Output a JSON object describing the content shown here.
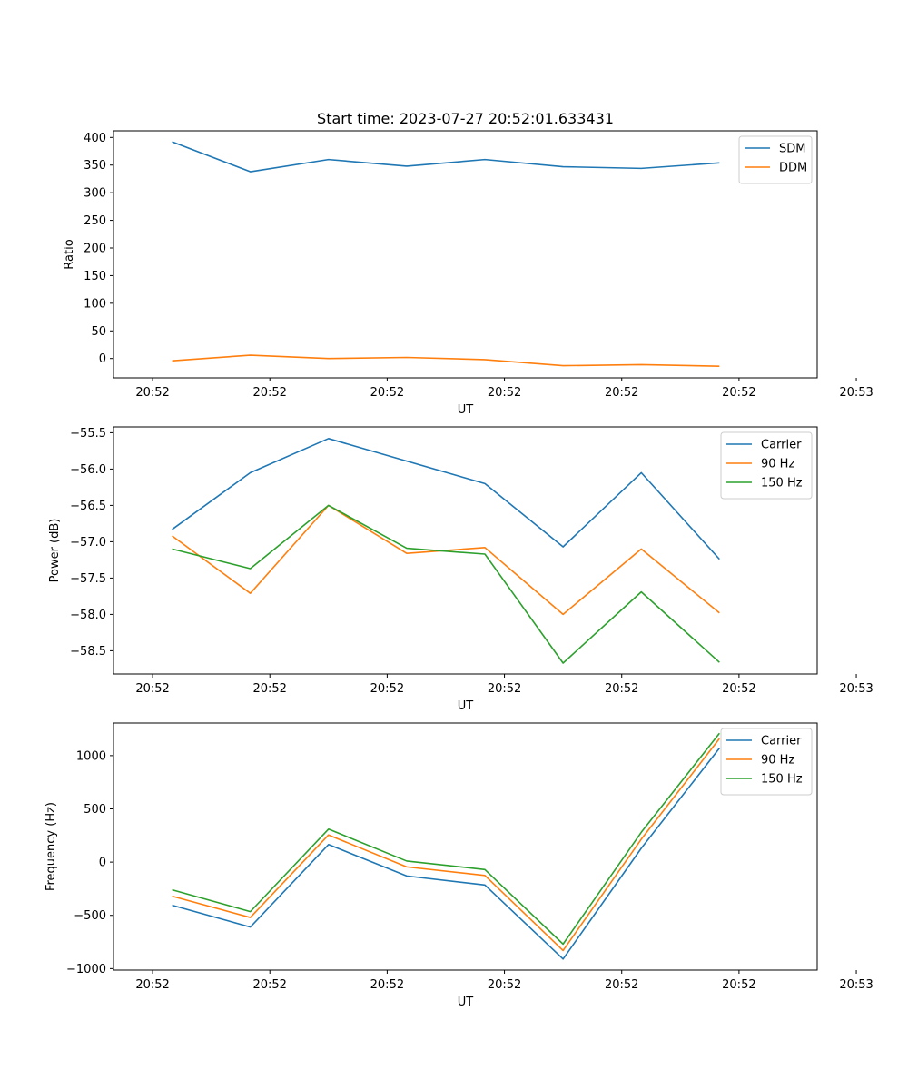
{
  "chart_data": [
    {
      "type": "line",
      "title": "Start time: 2023-07-27 20:52:01.633431",
      "xlabel": "UT",
      "ylabel": "Ratio",
      "xlim": [
        -0.5,
        8.5
      ],
      "ylim": [
        -35,
        412
      ],
      "x": [
        0.25,
        1.25,
        2.25,
        3.25,
        4.25,
        5.25,
        6.25,
        7.25
      ],
      "xticks": [
        0,
        1.5,
        3,
        4.5,
        6,
        7.5,
        9
      ],
      "xtick_labels": [
        "20:52",
        "20:52",
        "20:52",
        "20:52",
        "20:52",
        "20:52",
        "20:53"
      ],
      "yticks": [
        0,
        50,
        100,
        150,
        200,
        250,
        300,
        350,
        400
      ],
      "ytick_labels": [
        "0",
        "50",
        "100",
        "150",
        "200",
        "250",
        "300",
        "350",
        "400"
      ],
      "legend": "top-right",
      "series": [
        {
          "name": "SDM",
          "color": "#1f77b4",
          "values": [
            392,
            338,
            360,
            348,
            360,
            347,
            344,
            354
          ]
        },
        {
          "name": "DDM",
          "color": "#ff7f0e",
          "values": [
            -4,
            6,
            0,
            2,
            -2,
            -13,
            -11,
            -14
          ]
        }
      ]
    },
    {
      "type": "line",
      "title": "",
      "xlabel": "UT",
      "ylabel": "Power (dB)",
      "xlim": [
        -0.5,
        8.5
      ],
      "ylim": [
        -58.82,
        -55.42
      ],
      "x": [
        0.25,
        1.25,
        2.25,
        3.25,
        4.25,
        5.25,
        6.25,
        7.25
      ],
      "xticks": [
        0,
        1.5,
        3,
        4.5,
        6,
        7.5,
        9
      ],
      "xtick_labels": [
        "20:52",
        "20:52",
        "20:52",
        "20:52",
        "20:52",
        "20:52",
        "20:53"
      ],
      "yticks": [
        -58.5,
        -58.0,
        -57.5,
        -57.0,
        -56.5,
        -56.0,
        -55.5
      ],
      "ytick_labels": [
        "−58.5",
        "−58.0",
        "−57.5",
        "−57.0",
        "−56.5",
        "−56.0",
        "−55.5"
      ],
      "legend": "top-right",
      "series": [
        {
          "name": "Carrier",
          "color": "#1f77b4",
          "values": [
            -56.83,
            -56.05,
            -55.58,
            -55.89,
            -56.2,
            -57.07,
            -56.05,
            -57.24
          ]
        },
        {
          "name": "90 Hz",
          "color": "#ff7f0e",
          "values": [
            -56.92,
            -57.71,
            -56.5,
            -57.16,
            -57.08,
            -58.0,
            -57.1,
            -57.98
          ]
        },
        {
          "name": "150 Hz",
          "color": "#2ca02c",
          "values": [
            -57.1,
            -57.37,
            -56.5,
            -57.09,
            -57.17,
            -58.67,
            -57.69,
            -58.66
          ]
        }
      ]
    },
    {
      "type": "line",
      "title": "",
      "xlabel": "UT",
      "ylabel": "Frequency (Hz)",
      "xlim": [
        -0.5,
        8.5
      ],
      "ylim": [
        -1014,
        1306
      ],
      "x": [
        0.25,
        1.25,
        2.25,
        3.25,
        4.25,
        5.25,
        6.25,
        7.25
      ],
      "xticks": [
        0,
        1.5,
        3,
        4.5,
        6,
        7.5,
        9
      ],
      "xtick_labels": [
        "20:52",
        "20:52",
        "20:52",
        "20:52",
        "20:52",
        "20:52",
        "20:53"
      ],
      "yticks": [
        -1000,
        -500,
        0,
        500,
        1000
      ],
      "ytick_labels": [
        "−1000",
        "−500",
        "0",
        "500",
        "1000"
      ],
      "legend": "top-right",
      "series": [
        {
          "name": "Carrier",
          "color": "#1f77b4",
          "values": [
            -405,
            -610,
            165,
            -130,
            -215,
            -910,
            130,
            1070
          ]
        },
        {
          "name": "90 Hz",
          "color": "#ff7f0e",
          "values": [
            -320,
            -520,
            255,
            -45,
            -125,
            -830,
            215,
            1160
          ]
        },
        {
          "name": "150 Hz",
          "color": "#2ca02c",
          "values": [
            -260,
            -465,
            310,
            10,
            -70,
            -770,
            280,
            1210
          ]
        }
      ]
    }
  ]
}
